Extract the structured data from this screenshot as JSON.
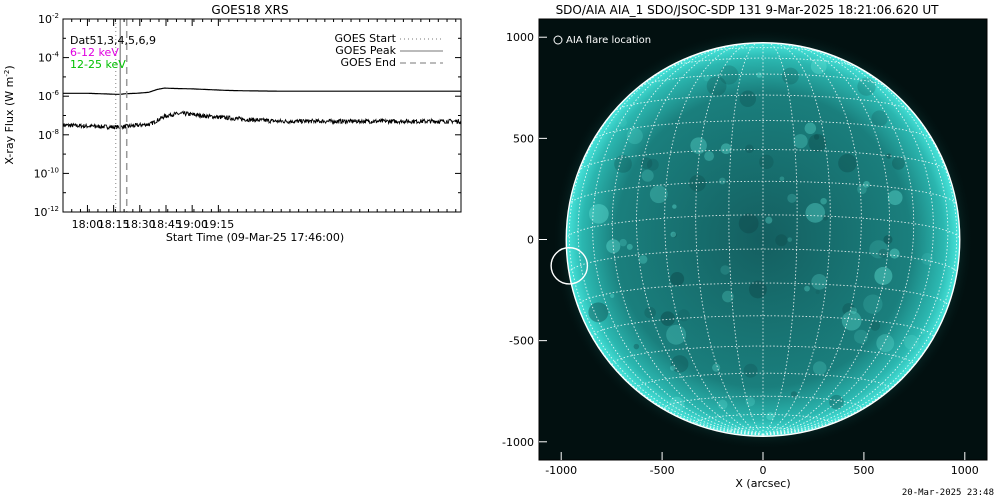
{
  "goes": {
    "chart_data": {
      "type": "line",
      "title": "GOES18 XRS",
      "xlabel": "Start Time (09-Mar-25 17:46:00)",
      "ylabel_main": "X-ray Flux (W m",
      "ylabel_sup": "-2",
      "ylabel_end": ")",
      "y_scale": "log",
      "ylim_exp": [
        -12,
        -2
      ],
      "y_ticks": [
        {
          "base": "10",
          "exp": "-2",
          "value_exp": -2
        },
        {
          "base": "10",
          "exp": "-4",
          "value_exp": -4
        },
        {
          "base": "10",
          "exp": "-6",
          "value_exp": -6
        },
        {
          "base": "10",
          "exp": "-8",
          "value_exp": -8
        },
        {
          "base": "10",
          "exp": "-10",
          "value_exp": -10
        },
        {
          "base": "10",
          "exp": "-12",
          "value_exp": -12
        }
      ],
      "x_range_min": [
        1066,
        1294
      ],
      "x_ticks": [
        {
          "label": "18:00",
          "min": 1080
        },
        {
          "label": "18:15",
          "min": 1095
        },
        {
          "label": "18:30",
          "min": 1110
        },
        {
          "label": "18:45",
          "min": 1125
        },
        {
          "label": "19:00",
          "min": 1140
        },
        {
          "label": "19:15",
          "min": 1155
        }
      ],
      "annotations": [
        "Dat51,3,4,5,6,9"
      ],
      "channel_labels": [
        {
          "text": "6-12 keV",
          "color": "#e000e0"
        },
        {
          "text": "12-25 keV",
          "color": "#00c000"
        }
      ],
      "legend": {
        "placement": "top-right",
        "items": [
          {
            "label": "GOES Start",
            "style": "dotted"
          },
          {
            "label": "GOES Peak",
            "style": "solid"
          },
          {
            "label": "GOES End",
            "style": "dashed"
          }
        ]
      },
      "vlines": [
        {
          "name": "GOES Start",
          "min": 1096.2,
          "style": "dotted"
        },
        {
          "name": "GOES Peak",
          "min": 1098.8,
          "style": "solid"
        },
        {
          "name": "GOES End",
          "min": 1102.5,
          "style": "dashed"
        }
      ],
      "series": [
        {
          "channel": "long",
          "x_min": [
            1066,
            1080,
            1090,
            1096,
            1099,
            1102,
            1108,
            1115,
            1120,
            1124,
            1130,
            1140,
            1150,
            1160,
            1170,
            1180,
            1190,
            1194
          ],
          "y_exp": [
            -5.85,
            -5.85,
            -5.88,
            -5.9,
            -5.9,
            -5.87,
            -5.85,
            -5.8,
            -5.65,
            -5.58,
            -5.6,
            -5.62,
            -5.66,
            -5.7,
            -5.72,
            -5.73,
            -5.74,
            -5.74
          ]
        },
        {
          "channel": "short",
          "noisy": true,
          "x_min": [
            1066,
            1080,
            1090,
            1095,
            1099,
            1104,
            1110,
            1116,
            1120,
            1124,
            1128,
            1135,
            1140,
            1150,
            1160,
            1170,
            1180,
            1190,
            1194
          ],
          "y_exp": [
            -7.5,
            -7.55,
            -7.58,
            -7.6,
            -7.6,
            -7.55,
            -7.5,
            -7.45,
            -7.25,
            -7.05,
            -6.95,
            -6.9,
            -6.95,
            -7.05,
            -7.12,
            -7.2,
            -7.25,
            -7.3,
            -7.3
          ]
        }
      ]
    }
  },
  "aia": {
    "chart_data": {
      "type": "scatter",
      "title": "SDO/AIA AIA_1 SDO/JSOC-SDP 131  9-Mar-2025 18:21:06.620 UT",
      "xlabel": "X (arcsec)",
      "ylabel": "",
      "xlim": [
        -1110,
        1110
      ],
      "ylim": [
        -1090,
        1090
      ],
      "x_ticks": [
        -1000,
        -500,
        0,
        500,
        1000
      ],
      "y_ticks": [
        1000,
        500,
        0,
        -500,
        -1000
      ],
      "solar_radius_arcsec": 975,
      "grid_spacing_deg": 10,
      "legend_label": "AIA flare location",
      "flare_location": {
        "x": -960,
        "y": -130,
        "radius": 90
      },
      "colors": {
        "background": "#021010",
        "disk": "#1b8f8c",
        "limb": "#3de2d8",
        "grid": "#ffffff"
      }
    }
  },
  "footer": {
    "timestamp": "20-Mar-2025 23:48"
  }
}
